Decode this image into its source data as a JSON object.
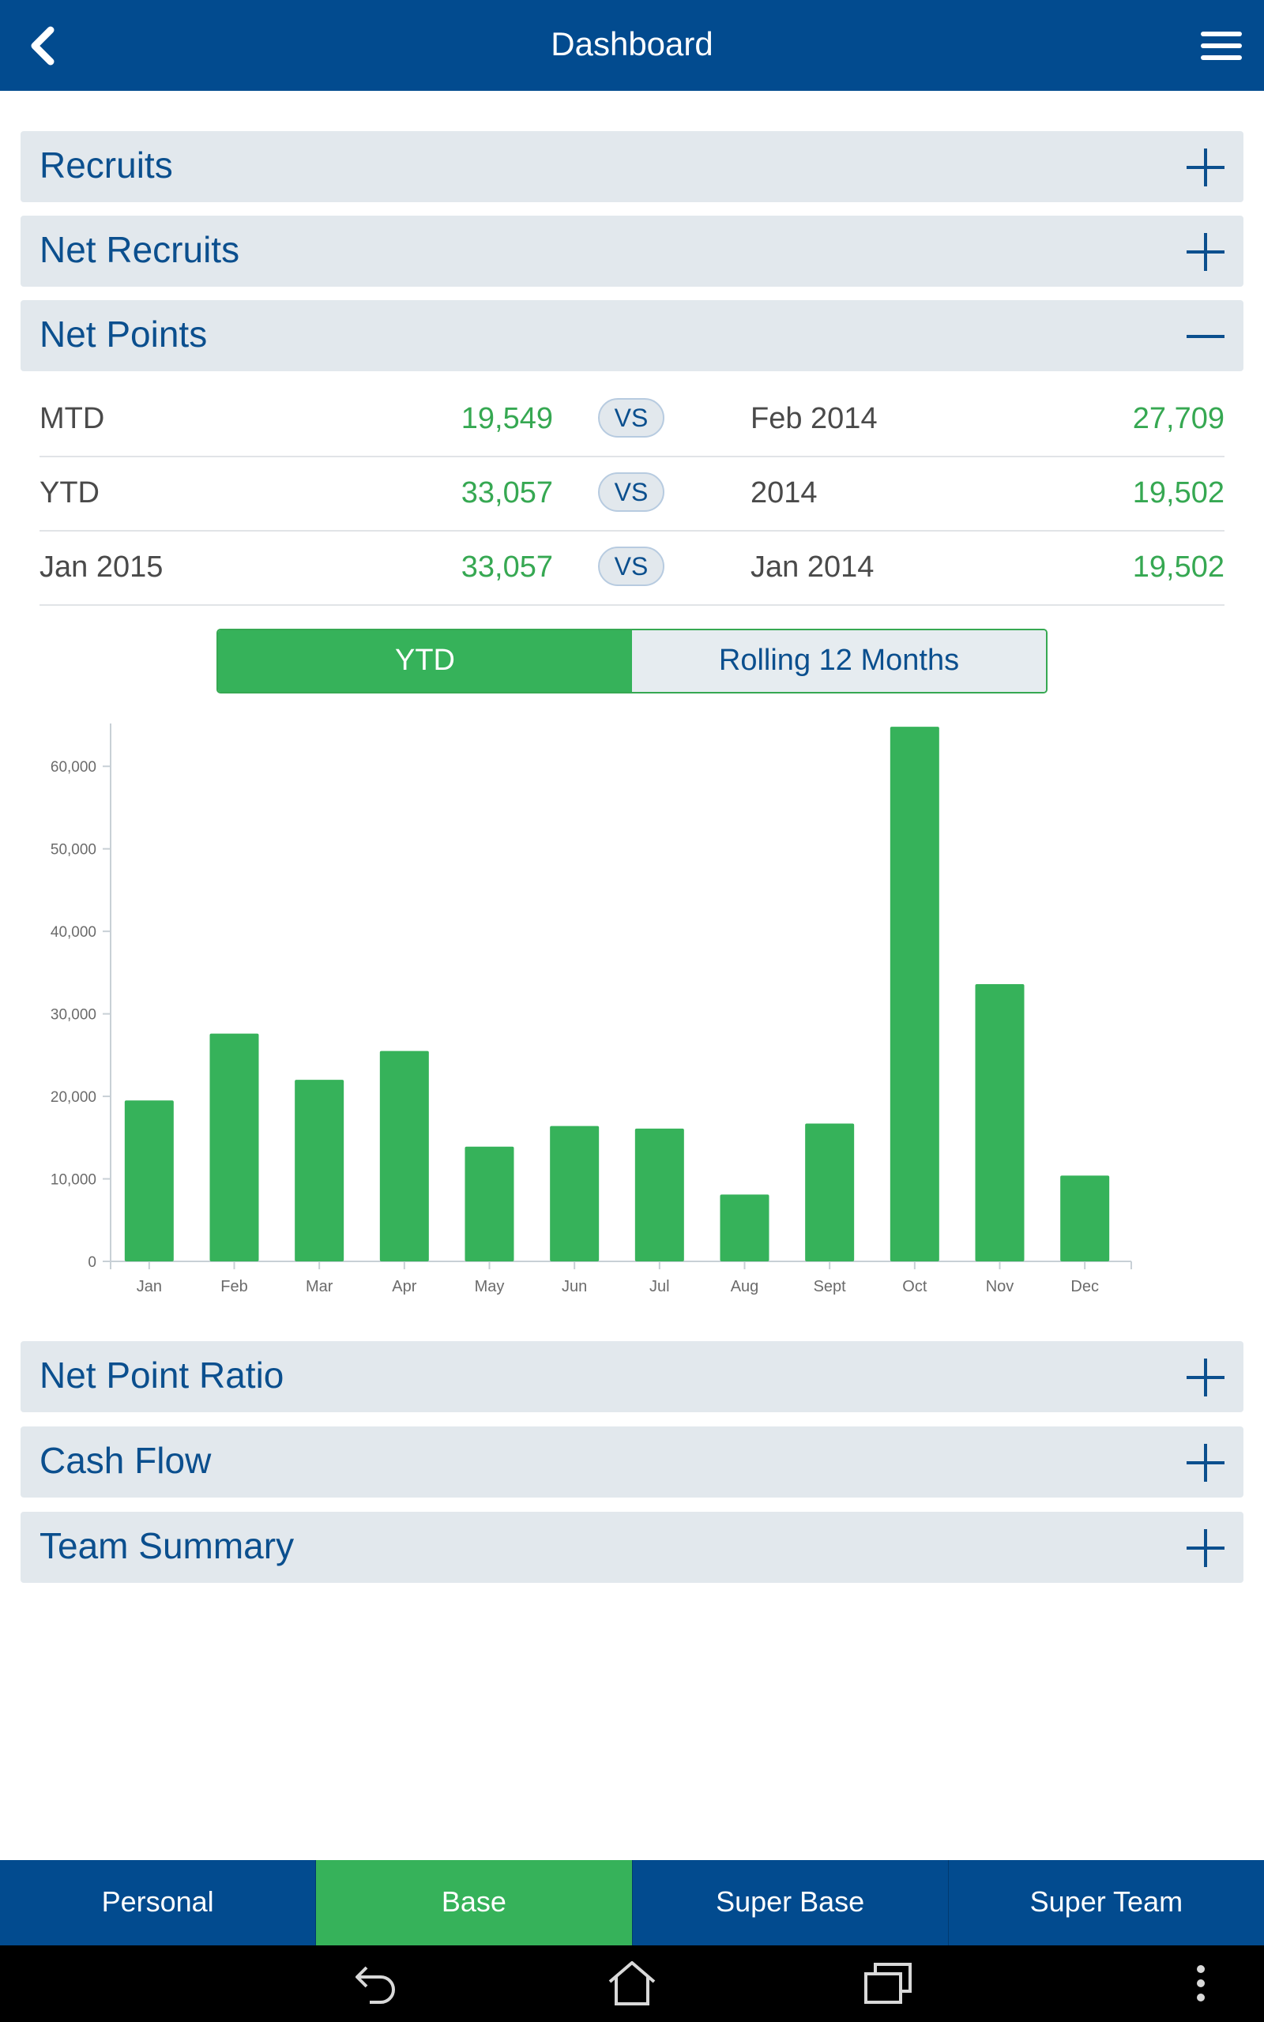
{
  "header": {
    "title": "Dashboard"
  },
  "panels_top": [
    {
      "label": "Recruits",
      "state": "collapsed"
    },
    {
      "label": "Net Recruits",
      "state": "collapsed"
    },
    {
      "label": "Net Points",
      "state": "expanded"
    }
  ],
  "comparisons": [
    {
      "left_label": "MTD",
      "left_value": "19,549",
      "vs": "VS",
      "right_label": "Feb 2014",
      "right_value": "27,709"
    },
    {
      "left_label": "YTD",
      "left_value": "33,057",
      "vs": "VS",
      "right_label": "2014",
      "right_value": "19,502"
    },
    {
      "left_label": "Jan 2015",
      "left_value": "33,057",
      "vs": "VS",
      "right_label": "Jan 2014",
      "right_value": "19,502"
    }
  ],
  "segment": {
    "options": [
      "YTD",
      "Rolling 12 Months"
    ],
    "selected": "YTD"
  },
  "chart_data": {
    "type": "bar",
    "categories": [
      "Jan",
      "Feb",
      "Mar",
      "Apr",
      "May",
      "Jun",
      "Jul",
      "Aug",
      "Sept",
      "Oct",
      "Nov",
      "Dec"
    ],
    "values": [
      19500,
      27600,
      22000,
      25500,
      13900,
      16400,
      16100,
      8100,
      16700,
      64800,
      33600,
      10400
    ],
    "yticks": [
      "0",
      "10,000",
      "20,000",
      "30,000",
      "40,000",
      "50,000",
      "60,000"
    ],
    "ylim": [
      0,
      65000
    ],
    "grid": false,
    "bar_color": "#36b25a"
  },
  "panels_bottom": [
    {
      "label": "Net Point Ratio",
      "state": "collapsed"
    },
    {
      "label": "Cash Flow",
      "state": "collapsed"
    },
    {
      "label": "Team Summary",
      "state": "collapsed"
    }
  ],
  "bottom_nav": {
    "tabs": [
      "Personal",
      "Base",
      "Super Base",
      "Super Team"
    ],
    "active": "Base"
  },
  "colors": {
    "header_bg": "#024b8f",
    "accent_green": "#36b25a",
    "value_green": "#36a852",
    "panel_bg": "#e2e8ed",
    "panel_text": "#0b4f8e"
  },
  "icons": {
    "back": "chevron-left-icon",
    "menu": "hamburger-menu-icon",
    "expand": "plus-icon",
    "collapse": "minus-icon",
    "sys_back": "back-arrow-icon",
    "sys_home": "home-icon",
    "sys_recents": "recent-apps-icon",
    "sys_more": "overflow-menu-icon"
  }
}
